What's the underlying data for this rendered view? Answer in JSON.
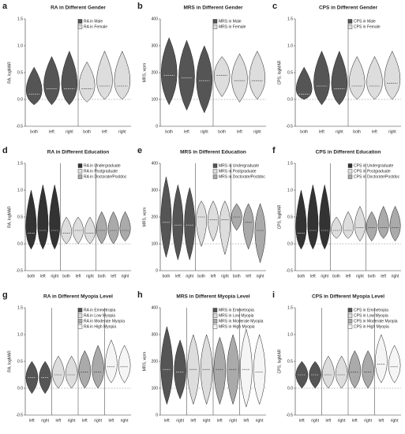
{
  "chart_data": [
    {
      "type": "violin",
      "label": "a",
      "title": "RA in Different Gender",
      "ylabel": "RA, logMAR",
      "ylim": [
        -0.5,
        1.5
      ],
      "yticks": [
        -0.5,
        {
          "value": 0,
          "label": "0.0"
        },
        0.5,
        {
          "value": 1,
          "label": "1.0"
        },
        1.5
      ],
      "refline": 0,
      "series": [
        {
          "name": "RA in Male",
          "color": "#555555",
          "categories": [
            "both",
            "left",
            "right"
          ],
          "min": [
            -0.1,
            -0.1,
            -0.1
          ],
          "median": [
            0.1,
            0.2,
            0.2
          ],
          "max": [
            0.6,
            0.8,
            0.9
          ]
        },
        {
          "name": "RA in Female",
          "color": "#dddddd",
          "categories": [
            "both",
            "left",
            "right"
          ],
          "min": [
            -0.05,
            0,
            0
          ],
          "median": [
            0.2,
            0.25,
            0.25
          ],
          "max": [
            0.7,
            0.9,
            0.9
          ]
        }
      ]
    },
    {
      "type": "violin",
      "label": "b",
      "title": "MRS in Different Gender",
      "ylabel": "MRS, wpm",
      "ylim": [
        0,
        400
      ],
      "yticks": [
        0,
        100,
        200,
        300,
        400
      ],
      "refline": 100,
      "series": [
        {
          "name": "MRS in Male",
          "color": "#555555",
          "categories": [
            "both",
            "left",
            "right"
          ],
          "min": [
            80,
            60,
            50
          ],
          "median": [
            190,
            180,
            170
          ],
          "max": [
            330,
            320,
            300
          ]
        },
        {
          "name": "MRS in Female",
          "color": "#dddddd",
          "categories": [
            "both",
            "left",
            "right"
          ],
          "min": [
            110,
            90,
            100
          ],
          "median": [
            190,
            170,
            170
          ],
          "max": [
            260,
            270,
            280
          ]
        }
      ]
    },
    {
      "type": "violin",
      "label": "c",
      "title": "CPS in Different Gender",
      "ylabel": "CPS, logMAR",
      "ylim": [
        -0.5,
        1.5
      ],
      "yticks": [
        -0.5,
        {
          "value": 0,
          "label": "0.0"
        },
        0.5,
        {
          "value": 1,
          "label": "1.0"
        },
        1.5
      ],
      "refline": 0,
      "series": [
        {
          "name": "CPS in Male",
          "color": "#555555",
          "categories": [
            "both",
            "left",
            "right"
          ],
          "min": [
            0,
            -0.1,
            -0.1
          ],
          "median": [
            0.1,
            0.25,
            0.2
          ],
          "max": [
            0.6,
            0.9,
            0.9
          ]
        },
        {
          "name": "CPS in Female",
          "color": "#dddddd",
          "categories": [
            "both",
            "left",
            "right"
          ],
          "min": [
            0,
            0,
            0
          ],
          "median": [
            0.25,
            0.25,
            0.3
          ],
          "max": [
            0.8,
            0.8,
            0.9
          ]
        }
      ]
    },
    {
      "type": "violin",
      "label": "d",
      "title": "RA in Different Education",
      "ylabel": "RA, logMAR",
      "ylim": [
        -0.5,
        1.5
      ],
      "yticks": [
        -0.5,
        {
          "value": 0,
          "label": "0.0"
        },
        0.5,
        {
          "value": 1,
          "label": "1.0"
        },
        1.5
      ],
      "refline": 0,
      "series": [
        {
          "name": "RA in Undergraduate",
          "color": "#333333",
          "categories": [
            "both",
            "left",
            "right"
          ],
          "min": [
            -0.1,
            -0.1,
            -0.1
          ],
          "median": [
            0.2,
            0.25,
            0.25
          ],
          "max": [
            1.0,
            1.1,
            1.1
          ]
        },
        {
          "name": "RA in Postgraduate",
          "color": "#dddddd",
          "categories": [
            "both",
            "left",
            "right"
          ],
          "min": [
            0,
            0,
            0
          ],
          "median": [
            0.2,
            0.25,
            0.2
          ],
          "max": [
            0.5,
            0.5,
            0.5
          ]
        },
        {
          "name": "RA in Doctorate/Postdoc",
          "color": "#aaaaaa",
          "categories": [
            "both",
            "left",
            "right"
          ],
          "min": [
            0,
            0,
            0.05
          ],
          "median": [
            0.25,
            0.25,
            0.25
          ],
          "max": [
            0.6,
            0.6,
            0.6
          ]
        }
      ]
    },
    {
      "type": "violin",
      "label": "e",
      "title": "MRS in Different Education",
      "ylabel": "MRS, wpm",
      "ylim": [
        0,
        400
      ],
      "yticks": [
        0,
        100,
        200,
        300,
        400
      ],
      "refline": 100,
      "series": [
        {
          "name": "MRS in Undergraduate",
          "color": "#555555",
          "categories": [
            "both",
            "left",
            "right"
          ],
          "min": [
            50,
            40,
            40
          ],
          "median": [
            180,
            170,
            170
          ],
          "max": [
            350,
            320,
            310
          ]
        },
        {
          "name": "MRS in Postgraduate",
          "color": "#dddddd",
          "categories": [
            "both",
            "left",
            "right"
          ],
          "min": [
            90,
            110,
            60
          ],
          "median": [
            200,
            190,
            190
          ],
          "max": [
            260,
            260,
            260
          ]
        },
        {
          "name": "MRS in Doctorate/Postdoc",
          "color": "#aaaaaa",
          "categories": [
            "both",
            "left",
            "right"
          ],
          "min": [
            150,
            80,
            30
          ],
          "median": [
            200,
            180,
            150
          ],
          "max": [
            250,
            250,
            250
          ]
        }
      ]
    },
    {
      "type": "violin",
      "label": "f",
      "title": "CPS in Different Education",
      "ylabel": "CPS, logMAR",
      "ylim": [
        -0.5,
        1.5
      ],
      "yticks": [
        -0.5,
        {
          "value": 0,
          "label": "0.0"
        },
        0.5,
        {
          "value": 1,
          "label": "1.0"
        },
        1.5
      ],
      "refline": 0,
      "series": [
        {
          "name": "CPS in Undergraduate",
          "color": "#333333",
          "categories": [
            "both",
            "left",
            "right"
          ],
          "min": [
            -0.1,
            -0.1,
            -0.1
          ],
          "median": [
            0.2,
            0.25,
            0.25
          ],
          "max": [
            1.0,
            1.1,
            1.1
          ]
        },
        {
          "name": "CPS in Postgraduate",
          "color": "#dddddd",
          "categories": [
            "both",
            "left",
            "right"
          ],
          "min": [
            0.1,
            0.1,
            0.05
          ],
          "median": [
            0.25,
            0.25,
            0.3
          ],
          "max": [
            0.5,
            0.6,
            0.7
          ]
        },
        {
          "name": "CPS in Doctorate/Postdoc",
          "color": "#aaaaaa",
          "categories": [
            "both",
            "left",
            "right"
          ],
          "min": [
            0.05,
            0.1,
            0.05
          ],
          "median": [
            0.3,
            0.3,
            0.3
          ],
          "max": [
            0.6,
            0.7,
            0.7
          ]
        }
      ]
    },
    {
      "type": "violin",
      "label": "g",
      "title": "RA in Different Myopia Level",
      "ylabel": "RA, logMAR",
      "ylim": [
        -0.5,
        1.5
      ],
      "yticks": [
        -0.5,
        {
          "value": 0,
          "label": "0.0"
        },
        0.5,
        {
          "value": 1,
          "label": "1.0"
        },
        1.5
      ],
      "refline": 0,
      "series": [
        {
          "name": "RA in Emmetropia",
          "color": "#555555",
          "categories": [
            "left",
            "right"
          ],
          "min": [
            -0.1,
            -0.1
          ],
          "median": [
            0.2,
            0.2
          ],
          "max": [
            0.5,
            0.5
          ]
        },
        {
          "name": "RA in Low Myopia",
          "color": "#dddddd",
          "categories": [
            "left",
            "right"
          ],
          "min": [
            0,
            0
          ],
          "median": [
            0.25,
            0.25
          ],
          "max": [
            0.6,
            0.6
          ]
        },
        {
          "name": "RA in Moderate Myopia",
          "color": "#aaaaaa",
          "categories": [
            "left",
            "right"
          ],
          "min": [
            0,
            0
          ],
          "median": [
            0.3,
            0.3
          ],
          "max": [
            0.7,
            0.8
          ]
        },
        {
          "name": "RA in High Myopia",
          "color": "#f5f5f5",
          "categories": [
            "left",
            "right"
          ],
          "min": [
            0.1,
            0.1
          ],
          "median": [
            0.4,
            0.4
          ],
          "max": [
            0.9,
            0.8
          ]
        }
      ]
    },
    {
      "type": "violin",
      "label": "h",
      "title": "MRS in Different Myopia Level",
      "ylabel": "MRS, wpm",
      "ylim": [
        0,
        400
      ],
      "yticks": [
        0,
        100,
        200,
        300,
        400
      ],
      "refline": 100,
      "series": [
        {
          "name": "MRS in Emmetropia",
          "color": "#555555",
          "categories": [
            "left",
            "right"
          ],
          "min": [
            40,
            60
          ],
          "median": [
            170,
            160
          ],
          "max": [
            330,
            280
          ]
        },
        {
          "name": "MRS in Low Myopia",
          "color": "#dddddd",
          "categories": [
            "left",
            "right"
          ],
          "min": [
            40,
            40
          ],
          "median": [
            170,
            170
          ],
          "max": [
            300,
            300
          ]
        },
        {
          "name": "MRS in Moderate Myopia",
          "color": "#aaaaaa",
          "categories": [
            "left",
            "right"
          ],
          "min": [
            40,
            40
          ],
          "median": [
            170,
            170
          ],
          "max": [
            290,
            300
          ]
        },
        {
          "name": "MRS in High Myopia",
          "color": "#f5f5f5",
          "categories": [
            "left",
            "right"
          ],
          "min": [
            30,
            40
          ],
          "median": [
            170,
            160
          ],
          "max": [
            320,
            300
          ]
        }
      ]
    },
    {
      "type": "violin",
      "label": "i",
      "title": "CPS in Different Myopia Level",
      "ylabel": "CPS, logMAR",
      "ylim": [
        -0.5,
        1.5
      ],
      "yticks": [
        -0.5,
        {
          "value": 0,
          "label": "0.0"
        },
        0.5,
        {
          "value": 1,
          "label": "1.0"
        },
        1.5
      ],
      "refline": 0,
      "series": [
        {
          "name": "CPS in Emmetropia",
          "color": "#555555",
          "categories": [
            "left",
            "right"
          ],
          "min": [
            0,
            0
          ],
          "median": [
            0.25,
            0.25
          ],
          "max": [
            0.5,
            0.5
          ]
        },
        {
          "name": "CPS in Low Myopia",
          "color": "#dddddd",
          "categories": [
            "left",
            "right"
          ],
          "min": [
            0,
            0
          ],
          "median": [
            0.25,
            0.25
          ],
          "max": [
            0.6,
            0.6
          ]
        },
        {
          "name": "CPS in Moderate Myopia",
          "color": "#aaaaaa",
          "categories": [
            "left",
            "right"
          ],
          "min": [
            0,
            0
          ],
          "median": [
            0.3,
            0.3
          ],
          "max": [
            0.7,
            0.7
          ]
        },
        {
          "name": "CPS in High Myopia",
          "color": "#f5f5f5",
          "categories": [
            "left",
            "right"
          ],
          "min": [
            0.1,
            0.1
          ],
          "median": [
            0.45,
            0.4
          ],
          "max": [
            1.0,
            0.8
          ]
        }
      ]
    }
  ]
}
